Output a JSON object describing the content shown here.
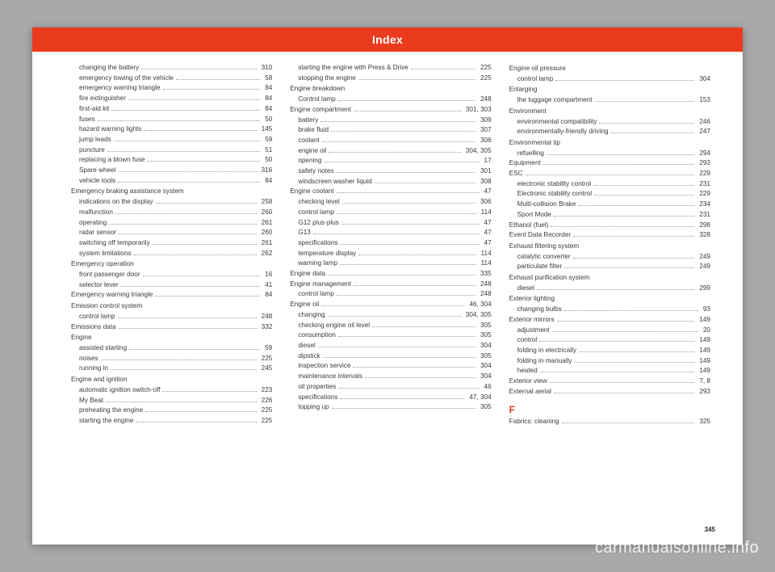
{
  "header": {
    "title": "Index"
  },
  "page_number": "345",
  "watermark": "carmanualsonline.info",
  "columns": [
    [
      {
        "sub": true,
        "label": "changing the battery",
        "page": "310"
      },
      {
        "sub": true,
        "label": "emergency towing of the vehicle",
        "page": "58"
      },
      {
        "sub": true,
        "label": "emergency warning triangle",
        "page": "84"
      },
      {
        "sub": true,
        "label": "fire extinguisher",
        "page": "84"
      },
      {
        "sub": true,
        "label": "first-aid kit",
        "page": "84"
      },
      {
        "sub": true,
        "label": "fuses",
        "page": "50"
      },
      {
        "sub": true,
        "label": "hazard warning lights",
        "page": "145"
      },
      {
        "sub": true,
        "label": "jump leads",
        "page": "59"
      },
      {
        "sub": true,
        "label": "puncture",
        "page": "51"
      },
      {
        "sub": true,
        "label": "replacing a blown fuse",
        "page": "50"
      },
      {
        "sub": true,
        "label": "Spare wheel",
        "page": "316"
      },
      {
        "sub": true,
        "label": "vehicle tools",
        "page": "84"
      },
      {
        "heading": true,
        "label": "Emergency braking assistance system"
      },
      {
        "sub": true,
        "label": "indications on the display",
        "page": "258"
      },
      {
        "sub": true,
        "label": "malfunction",
        "page": "260"
      },
      {
        "sub": true,
        "label": "operating",
        "page": "261"
      },
      {
        "sub": true,
        "label": "radar sensor",
        "page": "260"
      },
      {
        "sub": true,
        "label": "switching off temporarily",
        "page": "261"
      },
      {
        "sub": true,
        "label": "system limitations",
        "page": "262"
      },
      {
        "heading": true,
        "label": "Emergency operation"
      },
      {
        "sub": true,
        "label": "front passenger door",
        "page": "16"
      },
      {
        "sub": true,
        "label": "selector lever",
        "page": "41"
      },
      {
        "label": "Emergency warning triangle",
        "page": "84"
      },
      {
        "heading": true,
        "label": "Emission control system"
      },
      {
        "sub": true,
        "label": "control lamp",
        "page": "248"
      },
      {
        "label": "Emissions data",
        "page": "332"
      },
      {
        "heading": true,
        "label": "Engine"
      },
      {
        "sub": true,
        "label": "assisted starting",
        "page": "59"
      },
      {
        "sub": true,
        "label": "noises",
        "page": "225"
      },
      {
        "sub": true,
        "label": "running in",
        "page": "245"
      },
      {
        "heading": true,
        "label": "Engine and ignition"
      },
      {
        "sub": true,
        "label": "automatic ignition switch-off",
        "page": "223"
      },
      {
        "sub": true,
        "label": "My Beat",
        "page": "226"
      },
      {
        "sub": true,
        "label": "preheating the engine",
        "page": "225"
      },
      {
        "sub": true,
        "label": "starting the engine",
        "page": "225"
      }
    ],
    [
      {
        "sub": true,
        "label": "starting the engine with Press & Drive",
        "page": "225"
      },
      {
        "sub": true,
        "label": "stopping the engine",
        "page": "225"
      },
      {
        "heading": true,
        "label": "Engine breakdown"
      },
      {
        "sub": true,
        "label": "Control lamp",
        "page": "248"
      },
      {
        "label": "Engine compartment",
        "page": "301, 303"
      },
      {
        "sub": true,
        "label": "battery",
        "page": "309"
      },
      {
        "sub": true,
        "label": "brake fluid",
        "page": "307"
      },
      {
        "sub": true,
        "label": "coolant",
        "page": "306"
      },
      {
        "sub": true,
        "label": "engine oil",
        "page": "304, 305"
      },
      {
        "sub": true,
        "label": "opening",
        "page": "17"
      },
      {
        "sub": true,
        "label": "safety notes",
        "page": "301"
      },
      {
        "sub": true,
        "label": "windscreen washer liquid",
        "page": "308"
      },
      {
        "label": "Engine coolant",
        "page": "47"
      },
      {
        "sub": true,
        "label": "checking level",
        "page": "306"
      },
      {
        "sub": true,
        "label": "control lamp",
        "page": "114"
      },
      {
        "sub": true,
        "label": "G12 plus-plus",
        "page": "47"
      },
      {
        "sub": true,
        "label": "G13",
        "page": "47"
      },
      {
        "sub": true,
        "label": "specifications",
        "page": "47"
      },
      {
        "sub": true,
        "label": "temperature display",
        "page": "114"
      },
      {
        "sub": true,
        "label": "warning lamp",
        "page": "114"
      },
      {
        "label": "Engine data",
        "page": "335"
      },
      {
        "label": "Engine management",
        "page": "248"
      },
      {
        "sub": true,
        "label": "control lamp",
        "page": "248"
      },
      {
        "label": "Engine oil",
        "page": "46, 304"
      },
      {
        "sub": true,
        "label": "changing",
        "page": "304, 305"
      },
      {
        "sub": true,
        "label": "checking engine oil level",
        "page": "305"
      },
      {
        "sub": true,
        "label": "consumption",
        "page": "305"
      },
      {
        "sub": true,
        "label": "diesel",
        "page": "304"
      },
      {
        "sub": true,
        "label": "dipstick",
        "page": "305"
      },
      {
        "sub": true,
        "label": "inspection service",
        "page": "304"
      },
      {
        "sub": true,
        "label": "maintenance intervals",
        "page": "304"
      },
      {
        "sub": true,
        "label": "oil properties",
        "page": "46"
      },
      {
        "sub": true,
        "label": "specifications",
        "page": "47, 304"
      },
      {
        "sub": true,
        "label": "topping up",
        "page": "305"
      }
    ],
    [
      {
        "heading": true,
        "label": "Engine oil pressure"
      },
      {
        "sub": true,
        "label": "control lamp",
        "page": "304"
      },
      {
        "heading": true,
        "label": "Enlarging"
      },
      {
        "sub": true,
        "label": "the luggage compartment",
        "page": "153"
      },
      {
        "heading": true,
        "label": "Environment"
      },
      {
        "sub": true,
        "label": "environmental compatibility",
        "page": "246"
      },
      {
        "sub": true,
        "label": "environmentally-friendly driving",
        "page": "247"
      },
      {
        "heading": true,
        "label": "Environmental tip"
      },
      {
        "sub": true,
        "label": "refuelling",
        "page": "294"
      },
      {
        "label": "Equipment",
        "page": "293"
      },
      {
        "label": "ESC",
        "page": "229"
      },
      {
        "sub": true,
        "label": "electronic stability control",
        "page": "231"
      },
      {
        "sub": true,
        "label": "Electronic stability control",
        "page": "229"
      },
      {
        "sub": true,
        "label": "Multi-collision Brake",
        "page": "234"
      },
      {
        "sub": true,
        "label": "Sport Mode",
        "page": "231"
      },
      {
        "label": "Ethanol (fuel)",
        "page": "298"
      },
      {
        "label": "Event Data Recorder",
        "page": "328"
      },
      {
        "heading": true,
        "label": "Exhaust filtering system"
      },
      {
        "sub": true,
        "label": "catalytic converter",
        "page": "249"
      },
      {
        "sub": true,
        "label": "particulate filter",
        "page": "249"
      },
      {
        "heading": true,
        "label": "Exhaust purification system"
      },
      {
        "sub": true,
        "label": "diesel",
        "page": "299"
      },
      {
        "heading": true,
        "label": "Exterior lighting"
      },
      {
        "sub": true,
        "label": "changing bulbs",
        "page": "93"
      },
      {
        "label": "Exterior mirrors",
        "page": "149"
      },
      {
        "sub": true,
        "label": "adjustment",
        "page": "20"
      },
      {
        "sub": true,
        "label": "control",
        "page": "149"
      },
      {
        "sub": true,
        "label": "folding in electrically",
        "page": "149"
      },
      {
        "sub": true,
        "label": "folding in manually",
        "page": "149"
      },
      {
        "sub": true,
        "label": "heated",
        "page": "149"
      },
      {
        "label": "Exterior view",
        "page": "7, 8"
      },
      {
        "label": "External aerial",
        "page": "293"
      },
      {
        "letter": true,
        "label": "F"
      },
      {
        "label": "Fabrics: cleaning",
        "page": "325"
      }
    ]
  ]
}
